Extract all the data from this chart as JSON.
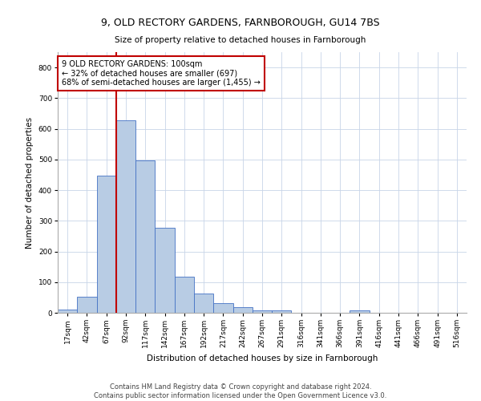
{
  "title": "9, OLD RECTORY GARDENS, FARNBOROUGH, GU14 7BS",
  "subtitle": "Size of property relative to detached houses in Farnborough",
  "xlabel": "Distribution of detached houses by size in Farnborough",
  "ylabel": "Number of detached properties",
  "categories": [
    "17sqm",
    "42sqm",
    "67sqm",
    "92sqm",
    "117sqm",
    "142sqm",
    "167sqm",
    "192sqm",
    "217sqm",
    "242sqm",
    "267sqm",
    "291sqm",
    "316sqm",
    "341sqm",
    "366sqm",
    "391sqm",
    "416sqm",
    "441sqm",
    "466sqm",
    "491sqm",
    "516sqm"
  ],
  "bar_values": [
    10,
    52,
    447,
    627,
    497,
    278,
    118,
    62,
    32,
    18,
    9,
    8,
    0,
    0,
    0,
    7,
    0,
    0,
    0,
    0,
    0
  ],
  "bar_color": "#b8cce4",
  "bar_edge_color": "#4472c4",
  "highlight_index": 3,
  "highlight_line_color": "#c00000",
  "ylim": [
    0,
    850
  ],
  "yticks": [
    0,
    100,
    200,
    300,
    400,
    500,
    600,
    700,
    800
  ],
  "annotation_box_text": "9 OLD RECTORY GARDENS: 100sqm\n← 32% of detached houses are smaller (697)\n68% of semi-detached houses are larger (1,455) →",
  "annotation_box_color": "#c00000",
  "footer_line1": "Contains HM Land Registry data © Crown copyright and database right 2024.",
  "footer_line2": "Contains public sector information licensed under the Open Government Licence v3.0.",
  "background_color": "#ffffff",
  "grid_color": "#c8d4e8",
  "title_fontsize": 9,
  "axis_fontsize": 7.5,
  "tick_fontsize": 6.5,
  "annotation_fontsize": 7,
  "footer_fontsize": 6
}
